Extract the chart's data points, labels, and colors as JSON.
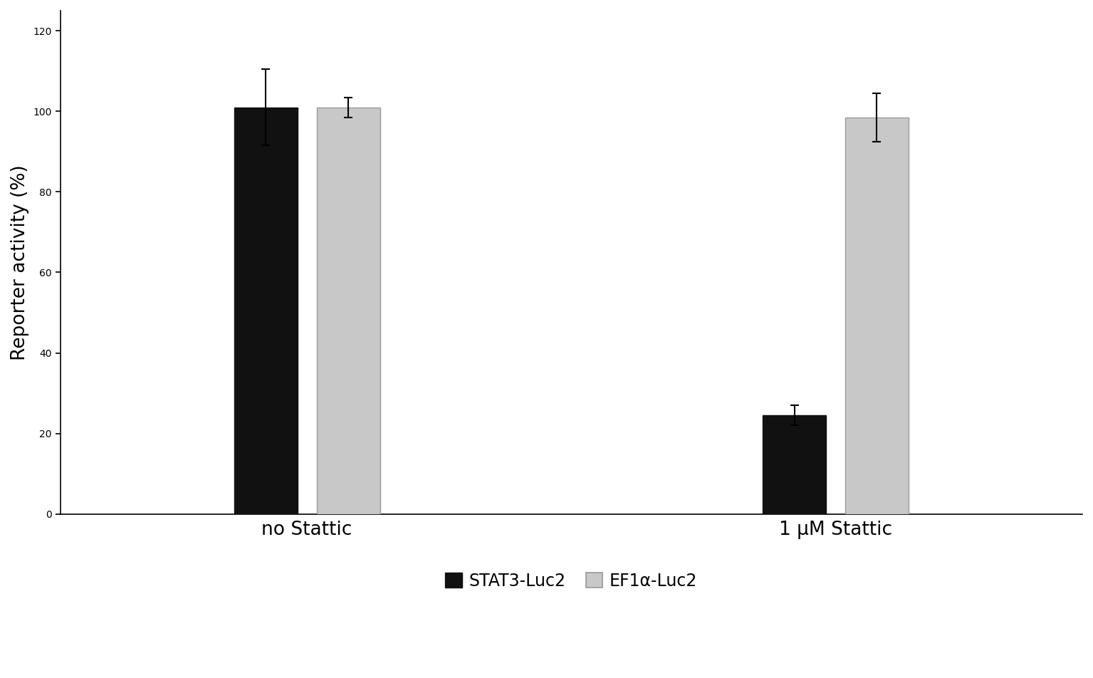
{
  "groups": [
    "no Stattic",
    "1 μM Stattic"
  ],
  "stat3_values": [
    101,
    24.5
  ],
  "ef1a_values": [
    101,
    98.5
  ],
  "stat3_errors": [
    9.5,
    2.5
  ],
  "ef1a_errors": [
    2.5,
    6.0
  ],
  "stat3_color": "#111111",
  "ef1a_color": "#c8c8c8",
  "ef1a_edgecolor": "#999999",
  "ylabel": "Reporter activity (%)",
  "ylim": [
    0,
    125
  ],
  "yticks": [
    0,
    20,
    40,
    60,
    80,
    100,
    120
  ],
  "bar_width": 0.18,
  "group_positions": [
    1.0,
    2.5
  ],
  "legend_labels": [
    "STAT3-Luc2",
    "EF1α-Luc2"
  ],
  "background_color": "#ffffff",
  "fontsize_ticks": 18,
  "fontsize_ylabel": 19,
  "fontsize_xlabel": 19,
  "fontsize_legend": 17,
  "capsize": 4
}
